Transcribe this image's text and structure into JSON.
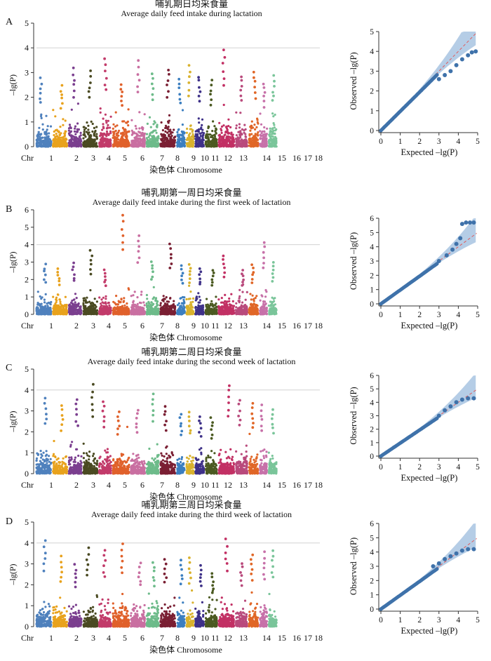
{
  "figure": {
    "chr_prefix": "Chr",
    "x_label": "染色体 Chromosome",
    "y_label_main": "–lg(P)",
    "qq_y_label": "Observed –lg(P)",
    "qq_x_label": "Expected –lg(P)"
  },
  "chart_data": [
    {
      "type": "scatter",
      "kind": "manhattan",
      "panel": "A",
      "title_cn": "哺乳期日均采食量",
      "title_en": "Average daily feed intake during lactation",
      "ylabel": "–lg(P)",
      "xlabel": "染色体 Chromosome",
      "ylim": [
        0,
        5
      ],
      "yticks": [
        0,
        1,
        2,
        3,
        4,
        5
      ],
      "threshold": 4,
      "chromosomes": [
        "1",
        "2",
        "3",
        "4",
        "5",
        "6",
        "7",
        "8",
        "9",
        "10",
        "11",
        "12",
        "13",
        "14",
        "15",
        "16",
        "17",
        "18"
      ],
      "chromosome_peaks": [
        2.8,
        2.5,
        3.2,
        3.1,
        3.6,
        2.6,
        3.5,
        3.0,
        3.2,
        2.8,
        3.3,
        2.9,
        2.7,
        3.95,
        2.9,
        3.1,
        2.6,
        2.9
      ]
    },
    {
      "type": "scatter",
      "kind": "qq",
      "panel": "A",
      "xlabel": "Expected –lg(P)",
      "ylabel": "Observed –lg(P)",
      "xlim": [
        0,
        5
      ],
      "ylim": [
        0,
        5
      ],
      "xticks": [
        0,
        1,
        2,
        3,
        4,
        5
      ],
      "yticks": [
        0,
        1,
        2,
        3,
        4,
        5
      ],
      "tail": [
        [
          3.0,
          2.6
        ],
        [
          3.3,
          2.8
        ],
        [
          3.6,
          3.0
        ],
        [
          3.9,
          3.3
        ],
        [
          4.2,
          3.6
        ],
        [
          4.5,
          3.8
        ],
        [
          4.7,
          3.95
        ],
        [
          4.9,
          4.0
        ]
      ]
    },
    {
      "type": "scatter",
      "kind": "manhattan",
      "panel": "B",
      "title_cn": "哺乳期第一周日均采食量",
      "title_en": "Average daily feed intake during the first week of lactation",
      "ylabel": "–lg(P)",
      "xlabel": "染色体 Chromosome",
      "ylim": [
        0,
        6
      ],
      "yticks": [
        0,
        1,
        2,
        3,
        4,
        5,
        6
      ],
      "threshold": 4,
      "chromosomes": [
        "1",
        "2",
        "3",
        "4",
        "5",
        "6",
        "7",
        "8",
        "9",
        "10",
        "11",
        "12",
        "13",
        "14",
        "15",
        "16",
        "17",
        "18"
      ],
      "chromosome_peaks": [
        2.9,
        2.7,
        3.0,
        3.7,
        2.6,
        5.75,
        4.6,
        3.1,
        4.1,
        2.8,
        2.9,
        2.7,
        2.6,
        3.4,
        2.6,
        2.9,
        4.2,
        3.0
      ]
    },
    {
      "type": "scatter",
      "kind": "qq",
      "panel": "B",
      "xlabel": "Expected –lg(P)",
      "ylabel": "Observed –lg(P)",
      "xlim": [
        0,
        5
      ],
      "ylim": [
        0,
        6
      ],
      "xticks": [
        0,
        1,
        2,
        3,
        4,
        5
      ],
      "yticks": [
        0,
        1,
        2,
        3,
        4,
        5,
        6
      ],
      "tail": [
        [
          3.0,
          3.0
        ],
        [
          3.4,
          3.4
        ],
        [
          3.7,
          3.8
        ],
        [
          3.9,
          4.2
        ],
        [
          4.1,
          4.6
        ],
        [
          4.2,
          5.6
        ],
        [
          4.4,
          5.7
        ],
        [
          4.6,
          5.7
        ],
        [
          4.8,
          5.7
        ]
      ]
    },
    {
      "type": "scatter",
      "kind": "manhattan",
      "panel": "C",
      "title_cn": "哺乳期第二周日均采食量",
      "title_en": "Average daily feed intake during the second week of lactation",
      "ylabel": "–lg(P)",
      "xlabel": "染色体 Chromosome",
      "ylim": [
        0,
        5
      ],
      "yticks": [
        0,
        1,
        2,
        3,
        4,
        5
      ],
      "threshold": 4,
      "chromosomes": [
        "1",
        "2",
        "3",
        "4",
        "5",
        "6",
        "7",
        "8",
        "9",
        "10",
        "11",
        "12",
        "13",
        "14",
        "15",
        "16",
        "17",
        "18"
      ],
      "chromosome_peaks": [
        3.7,
        3.3,
        3.6,
        4.3,
        3.5,
        3.0,
        3.1,
        3.9,
        3.3,
        2.9,
        3.0,
        2.8,
        2.7,
        4.3,
        3.6,
        3.4,
        3.3,
        3.1
      ]
    },
    {
      "type": "scatter",
      "kind": "qq",
      "panel": "C",
      "xlabel": "Expected –lg(P)",
      "ylabel": "Observed –lg(P)",
      "xlim": [
        0,
        5
      ],
      "ylim": [
        0,
        6
      ],
      "xticks": [
        0,
        1,
        2,
        3,
        4,
        5
      ],
      "yticks": [
        0,
        1,
        2,
        3,
        4,
        5,
        6
      ],
      "tail": [
        [
          3.0,
          3.0
        ],
        [
          3.3,
          3.4
        ],
        [
          3.6,
          3.7
        ],
        [
          3.9,
          4.0
        ],
        [
          4.2,
          4.2
        ],
        [
          4.5,
          4.3
        ],
        [
          4.8,
          4.3
        ]
      ]
    },
    {
      "type": "scatter",
      "kind": "manhattan",
      "panel": "D",
      "title_cn": "哺乳期第三周日均采食量",
      "title_en": "Average daily feed intake during the third week of lactation",
      "ylabel": "–lg(P)",
      "xlabel": "染色体 Chromosome",
      "ylim": [
        0,
        5
      ],
      "yticks": [
        0,
        1,
        2,
        3,
        4,
        5
      ],
      "threshold": 4,
      "chromosomes": [
        "1",
        "2",
        "3",
        "4",
        "5",
        "6",
        "7",
        "8",
        "9",
        "10",
        "11",
        "12",
        "13",
        "14",
        "15",
        "16",
        "17",
        "18"
      ],
      "chromosome_peaks": [
        4.2,
        3.4,
        3.0,
        3.8,
        3.7,
        4.0,
        3.1,
        3.1,
        3.3,
        3.2,
        3.3,
        3.0,
        2.6,
        4.2,
        3.1,
        3.5,
        3.6,
        3.7
      ]
    },
    {
      "type": "scatter",
      "kind": "qq",
      "panel": "D",
      "xlabel": "Expected –lg(P)",
      "ylabel": "Observed –lg(P)",
      "xlim": [
        0,
        5
      ],
      "ylim": [
        0,
        6
      ],
      "xticks": [
        0,
        1,
        2,
        3,
        4,
        5
      ],
      "yticks": [
        0,
        1,
        2,
        3,
        4,
        5,
        6
      ],
      "tail": [
        [
          2.7,
          3.0
        ],
        [
          3.0,
          3.2
        ],
        [
          3.3,
          3.5
        ],
        [
          3.6,
          3.7
        ],
        [
          3.9,
          3.9
        ],
        [
          4.2,
          4.1
        ],
        [
          4.5,
          4.2
        ],
        [
          4.8,
          4.2
        ]
      ]
    }
  ],
  "colors": {
    "chromosome_palette": [
      "#4f81bd",
      "#e8a21d",
      "#7b3f8f",
      "#4a4a22",
      "#c23b6a",
      "#e0612b",
      "#c96fa1",
      "#6dbb8a",
      "#7a1f33",
      "#3c7fc0",
      "#d9b22e",
      "#3e3188",
      "#4b5a21",
      "#c23064",
      "#b94a7c",
      "#e06627",
      "#c771a9",
      "#7ac59a"
    ],
    "qq_point": "#3f72aa",
    "qq_band": "#a8c4e2",
    "qq_diag": "#e05a5a",
    "threshold_line": "#cccccc"
  }
}
